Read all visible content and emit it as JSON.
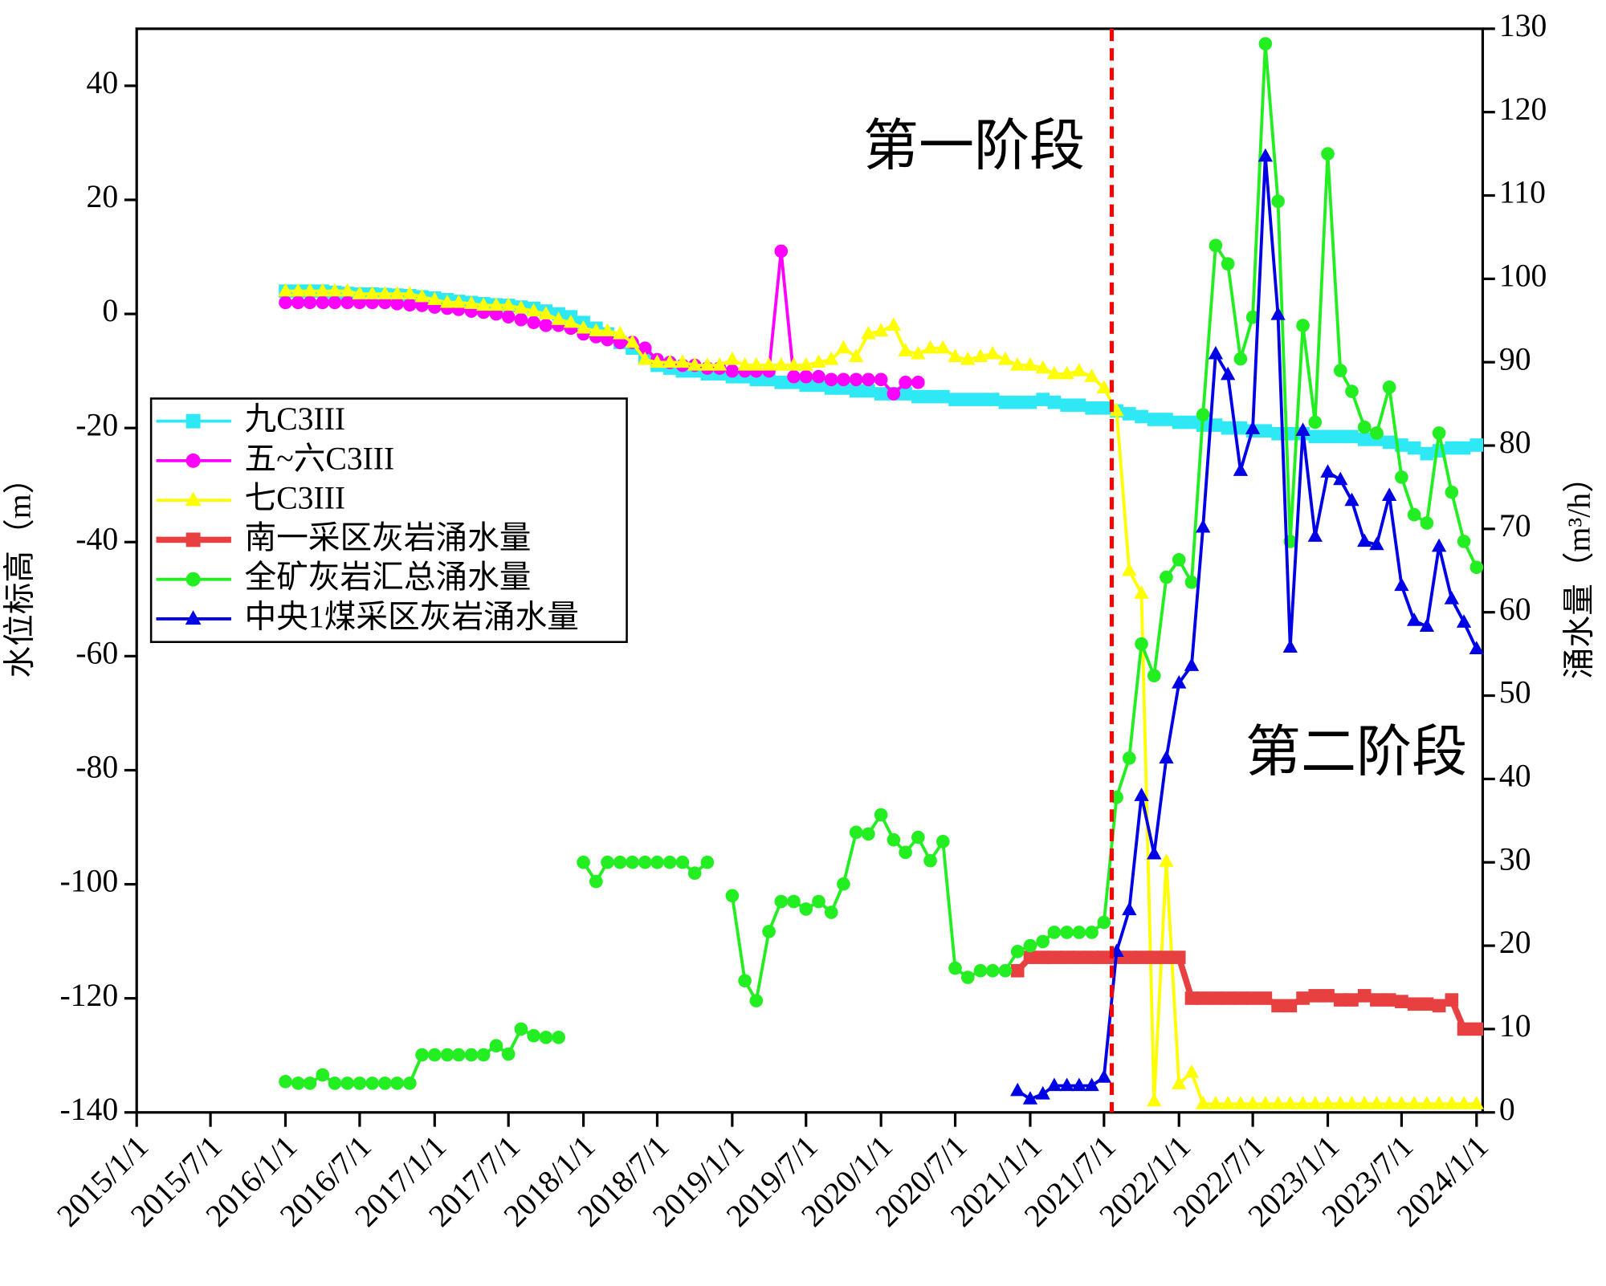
{
  "chart_data": {
    "type": "line",
    "ylabel": "水位标高（m）",
    "y2label": "涌水量（m³/h）",
    "annotations": [
      {
        "text": "第一阶段"
      },
      {
        "text": "第二阶段"
      }
    ],
    "annotation_color": "#ff0000",
    "vline": {
      "x": "2021/7/20",
      "color": "#ff0000"
    },
    "legend": "upper left",
    "xlim": [
      "2015/1/1",
      "2024/1/16"
    ],
    "xticks": [
      "2015/1/1",
      "2015/7/1",
      "2016/1/1",
      "2016/7/1",
      "2017/1/1",
      "2017/7/1",
      "2018/1/1",
      "2018/7/1",
      "2019/1/1",
      "2019/7/1",
      "2020/1/1",
      "2020/7/1",
      "2021/1/1",
      "2021/7/1",
      "2022/1/1",
      "2022/7/1",
      "2023/1/1",
      "2023/7/1",
      "2024/1/1"
    ],
    "ylim": [
      -140,
      50
    ],
    "yticks": [
      -140,
      -120,
      -100,
      -80,
      -60,
      -40,
      -20,
      0,
      20,
      40
    ],
    "y2lim": [
      0,
      130
    ],
    "y2ticks": [
      0,
      10,
      20,
      30,
      40,
      50,
      60,
      70,
      80,
      90,
      100,
      110,
      120,
      130
    ],
    "x": [
      "2016/1/1",
      "2016/2/1",
      "2016/3/1",
      "2016/4/1",
      "2016/5/1",
      "2016/6/1",
      "2016/7/1",
      "2016/8/1",
      "2016/9/1",
      "2016/10/1",
      "2016/11/1",
      "2016/12/1",
      "2017/1/1",
      "2017/2/1",
      "2017/3/1",
      "2017/4/1",
      "2017/5/1",
      "2017/6/1",
      "2017/7/1",
      "2017/8/1",
      "2017/9/1",
      "2017/10/1",
      "2017/11/1",
      "2017/12/1",
      "2018/1/1",
      "2018/2/1",
      "2018/3/1",
      "2018/4/1",
      "2018/5/1",
      "2018/6/1",
      "2018/7/1",
      "2018/8/1",
      "2018/9/1",
      "2018/10/1",
      "2018/11/1",
      "2018/12/1",
      "2019/1/1",
      "2019/2/1",
      "2019/3/1",
      "2019/4/1",
      "2019/5/1",
      "2019/6/1",
      "2019/7/1",
      "2019/8/1",
      "2019/9/1",
      "2019/10/1",
      "2019/11/1",
      "2019/12/1",
      "2020/1/1",
      "2020/2/1",
      "2020/3/1",
      "2020/4/1",
      "2020/5/1",
      "2020/6/1",
      "2020/7/1",
      "2020/8/1",
      "2020/9/1",
      "2020/10/1",
      "2020/11/1",
      "2020/12/1",
      "2021/1/1",
      "2021/2/1",
      "2021/3/1",
      "2021/4/1",
      "2021/5/1",
      "2021/6/1",
      "2021/7/1",
      "2021/8/1",
      "2021/9/1",
      "2021/10/1",
      "2021/11/1",
      "2021/12/1",
      "2022/1/1",
      "2022/2/1",
      "2022/3/1",
      "2022/4/1",
      "2022/5/1",
      "2022/6/1",
      "2022/7/1",
      "2022/8/1",
      "2022/9/1",
      "2022/10/1",
      "2022/11/1",
      "2022/12/1",
      "2023/1/1",
      "2023/2/1",
      "2023/3/1",
      "2023/4/1",
      "2023/5/1",
      "2023/6/1",
      "2023/7/1",
      "2023/8/1",
      "2023/9/1",
      "2023/10/1",
      "2023/11/1",
      "2023/12/1",
      "2024/1/1"
    ],
    "series": [
      {
        "name": "九C3III",
        "color": "#2ee8f5",
        "marker": "square",
        "axis": "y",
        "values": [
          4,
          4,
          4,
          4,
          3.8,
          3.6,
          3.5,
          3.5,
          3.4,
          3.3,
          3.2,
          3,
          2.8,
          2.5,
          2.2,
          2,
          1.8,
          1.6,
          1.5,
          1.2,
          1,
          0.5,
          0,
          -0.5,
          -1.5,
          -2.5,
          -3.5,
          -5,
          -6,
          -7.5,
          -9,
          -9.5,
          -10,
          -10,
          -10.5,
          -10.5,
          -11,
          -11,
          -11.5,
          -11.5,
          -12,
          -12,
          -12.5,
          -12.5,
          -13,
          -13,
          -13.5,
          -13.5,
          -14,
          -14,
          -14,
          -14.5,
          -14.5,
          -14.5,
          -15,
          -15,
          -15,
          -15,
          -15.5,
          -15.5,
          -15.5,
          -15,
          -15.5,
          -16,
          -16,
          -16.5,
          -16.5,
          -17,
          -17.5,
          -18,
          -18.5,
          -18.5,
          -19,
          -19,
          -19.5,
          -19.5,
          -20,
          -20,
          -20.5,
          -20.5,
          -21,
          -21,
          -21,
          -21.5,
          -21.5,
          -21.5,
          -21.5,
          -22,
          -22,
          -22.5,
          -23,
          -23.5,
          -24.5,
          -24,
          -23.5,
          -23.5,
          -23
        ]
      },
      {
        "name": "五~六C3III",
        "color": "#ff00ff",
        "marker": "circle",
        "axis": "y",
        "values": [
          2,
          2,
          2,
          2,
          2,
          2,
          2,
          2,
          2,
          1.8,
          1.6,
          1.5,
          1.2,
          1,
          0.8,
          0.5,
          0.3,
          0,
          -0.5,
          -1,
          -1.5,
          -2,
          -2,
          -2.5,
          -3.5,
          -4,
          -4.5,
          -5,
          -5,
          -6,
          -8,
          -8.5,
          -9,
          -9,
          -9.5,
          -9.5,
          -10,
          -10,
          -10,
          -10,
          11,
          -11,
          -11,
          -11,
          -11.5,
          -11.5,
          -11.5,
          -11.5,
          -11.5,
          -14,
          -12,
          -12,
          null,
          null,
          null,
          null,
          null,
          null,
          null,
          null,
          null,
          null,
          null,
          null,
          null,
          null,
          null,
          null,
          null,
          null,
          null,
          null,
          null,
          null,
          null,
          null,
          null,
          null,
          null,
          null,
          null,
          null,
          null,
          null,
          null,
          null,
          null,
          null,
          null,
          null,
          null,
          null,
          null,
          null,
          null,
          null,
          null
        ]
      },
      {
        "name": "七C3III",
        "color": "#ffff00",
        "marker": "triangle",
        "axis": "y",
        "values": [
          4,
          4,
          4,
          4,
          4,
          4,
          3.5,
          3.5,
          3.5,
          3.5,
          3.5,
          3,
          2.5,
          2,
          2,
          1.8,
          1.5,
          1.5,
          1.5,
          1,
          0.5,
          0,
          -1,
          -1.5,
          -2.5,
          -3,
          -3,
          -3.5,
          -5,
          -8,
          -8.5,
          -8.5,
          -8.5,
          -9,
          -9,
          -9,
          -8,
          -9,
          -9,
          -9,
          -9,
          -9,
          -9,
          -8.5,
          -8,
          -6,
          -7.5,
          -3.5,
          -3,
          -2,
          -6.5,
          -7,
          -6,
          -6,
          -7.5,
          -8,
          -7.5,
          -7,
          -8,
          -9,
          -9,
          -9.5,
          -10.5,
          -10.5,
          -10,
          -11,
          -13,
          -17,
          -45,
          -49,
          -138,
          -96,
          -135,
          -133,
          -138.5,
          -138.5,
          -138.5,
          -138.5,
          -138.5,
          -138.5,
          -138.5,
          -138.5,
          -138.5,
          -138.5,
          -138.5,
          -138.5,
          -138.5,
          -138.5,
          -138.5,
          -138.5,
          -138.5,
          -138.5,
          -138.5,
          -138.5,
          -138.5,
          -138.5,
          -138.5
        ]
      },
      {
        "name": "南一采区灰岩涌水量",
        "color": "#e84040",
        "marker": "square",
        "axis": "y2",
        "values": [
          null,
          null,
          null,
          null,
          null,
          null,
          null,
          null,
          null,
          null,
          null,
          null,
          null,
          null,
          null,
          null,
          null,
          null,
          null,
          null,
          null,
          null,
          null,
          null,
          null,
          null,
          null,
          null,
          null,
          null,
          null,
          null,
          null,
          null,
          null,
          null,
          null,
          null,
          null,
          null,
          null,
          null,
          null,
          null,
          null,
          null,
          null,
          null,
          null,
          null,
          null,
          null,
          null,
          null,
          null,
          null,
          null,
          null,
          null,
          17,
          18.6,
          18.6,
          18.6,
          18.6,
          18.6,
          18.6,
          18.6,
          18.6,
          18.6,
          18.6,
          18.6,
          18.6,
          18.6,
          13.7,
          13.7,
          13.7,
          13.7,
          13.7,
          13.7,
          13.7,
          12.8,
          12.8,
          13.7,
          14,
          14,
          13.5,
          13.5,
          14,
          13.5,
          13.5,
          13.3,
          13,
          13,
          12.8,
          13.5,
          10,
          10
        ]
      },
      {
        "name": "全矿灰岩汇总涌水量",
        "color": "#22ee22",
        "marker": "circle",
        "axis": "y2",
        "values": [
          3.7,
          3.5,
          3.5,
          4.5,
          3.5,
          3.5,
          3.5,
          3.5,
          3.5,
          3.5,
          3.5,
          6.9,
          6.9,
          6.9,
          6.9,
          6.9,
          6.9,
          8,
          7,
          10,
          9.2,
          9,
          9,
          null,
          30,
          27.7,
          30,
          30,
          30,
          30,
          30,
          30,
          30,
          28.7,
          30,
          null,
          26,
          15.8,
          13.4,
          21.7,
          25.3,
          25.3,
          24.4,
          25.3,
          24,
          27.4,
          33.6,
          33.4,
          35.7,
          32.7,
          31.2,
          33,
          30.2,
          32.5,
          17.3,
          16.2,
          17,
          17,
          17,
          19.3,
          20,
          20.5,
          21.6,
          21.6,
          21.6,
          21.6,
          22.8,
          37.8,
          42.5,
          56.2,
          52.4,
          64.2,
          66.3,
          63.6,
          83.7,
          104,
          101.8,
          90.4,
          95.4,
          128.2,
          109.3,
          68.5,
          94.4,
          82.8,
          115,
          89,
          86.5,
          82.2,
          81.5,
          87,
          76.2,
          71.7,
          70.7,
          81.5,
          74.4,
          68.5,
          65.4
        ]
      },
      {
        "name": "中央1煤采区灰岩涌水量",
        "color": "#0000e6",
        "marker": "triangle",
        "axis": "y2",
        "values": [
          null,
          null,
          null,
          null,
          null,
          null,
          null,
          null,
          null,
          null,
          null,
          null,
          null,
          null,
          null,
          null,
          null,
          null,
          null,
          null,
          null,
          null,
          null,
          null,
          null,
          null,
          null,
          null,
          null,
          null,
          null,
          null,
          null,
          null,
          null,
          null,
          null,
          null,
          null,
          null,
          null,
          null,
          null,
          null,
          null,
          null,
          null,
          null,
          null,
          null,
          null,
          null,
          null,
          null,
          null,
          null,
          null,
          null,
          null,
          2.6,
          1.6,
          2.2,
          3.2,
          3.2,
          3.2,
          3.2,
          4.2,
          19.3,
          24.3,
          38,
          31,
          42.5,
          51.5,
          53.6,
          70.2,
          91,
          88.5,
          77,
          82,
          114.7,
          95.7,
          55.8,
          81.8,
          69.1,
          76.8,
          75.9,
          73.4,
          68.5,
          68.1,
          74,
          63.2,
          59,
          58.3,
          67.9,
          61.6,
          58.8,
          55.6
        ]
      }
    ]
  }
}
